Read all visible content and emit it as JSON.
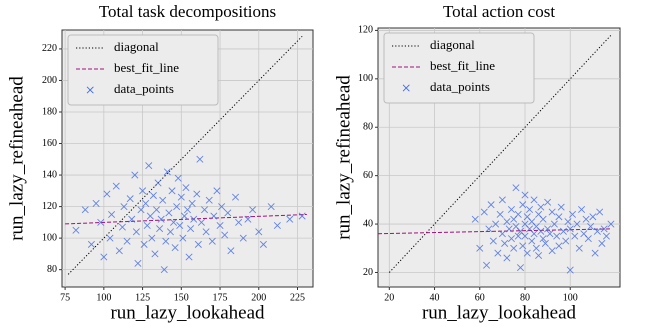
{
  "chart_data": [
    {
      "type": "scatter",
      "title": "Total task decompositions",
      "x_label": "run_lazy_lookahead",
      "y_label": "run_lazy_refineahead",
      "xlim": [
        73,
        235
      ],
      "ylim": [
        69,
        232
      ],
      "xticks": [
        75,
        100,
        125,
        150,
        175,
        200,
        225
      ],
      "yticks": [
        80,
        100,
        120,
        140,
        160,
        180,
        200,
        220
      ],
      "grid": true,
      "legend": "upper left",
      "series": [
        {
          "name": "diagonal",
          "kind": "line",
          "style": "dotted",
          "color": "#000000",
          "x": [
            77,
            228
          ],
          "values": [
            77,
            228
          ]
        },
        {
          "name": "best_fit_line",
          "kind": "line",
          "style": "dashed",
          "color": "#a0107a",
          "x": [
            75,
            231
          ],
          "values": [
            109,
            115
          ]
        },
        {
          "name": "data_points",
          "kind": "points",
          "marker": "x",
          "color": "#4169e1",
          "x": [
            82,
            88,
            92,
            95,
            98,
            100,
            102,
            104,
            105,
            108,
            110,
            112,
            113,
            115,
            117,
            118,
            120,
            121,
            122,
            124,
            125,
            126,
            127,
            128,
            129,
            130,
            131,
            132,
            133,
            134,
            135,
            136,
            137,
            138,
            139,
            140,
            141,
            142,
            143,
            144,
            145,
            146,
            147,
            148,
            149,
            150,
            151,
            152,
            153,
            154,
            155,
            156,
            157,
            158,
            160,
            161,
            162,
            163,
            165,
            166,
            168,
            170,
            171,
            173,
            175,
            176,
            178,
            180,
            182,
            185,
            187,
            190,
            193,
            196,
            200,
            203,
            208,
            212,
            220,
            228
          ],
          "values": [
            105,
            118,
            96,
            122,
            110,
            88,
            128,
            100,
            115,
            133,
            92,
            107,
            120,
            98,
            125,
            112,
            140,
            104,
            84,
            118,
            130,
            96,
            122,
            108,
            146,
            114,
            100,
            127,
            90,
            118,
            135,
            106,
            112,
            124,
            80,
            98,
            142,
            116,
            104,
            130,
            110,
            94,
            120,
            138,
            108,
            126,
            100,
            114,
            132,
            118,
            88,
            106,
            122,
            112,
            128,
            96,
            150,
            110,
            118,
            104,
            124,
            98,
            114,
            130,
            108,
            120,
            102,
            116,
            92,
            126,
            110,
            100,
            112,
            118,
            104,
            96,
            120,
            108,
            112,
            114
          ]
        }
      ]
    },
    {
      "type": "scatter",
      "title": "Total action cost",
      "x_label": "run_lazy_lookahead",
      "y_label": "run_lazy_refineahead",
      "xlim": [
        15,
        122
      ],
      "ylim": [
        14,
        121
      ],
      "xticks": [
        20,
        40,
        60,
        80,
        100
      ],
      "yticks": [
        20,
        40,
        60,
        80,
        100,
        120
      ],
      "grid": true,
      "legend": "upper left",
      "series": [
        {
          "name": "diagonal",
          "kind": "line",
          "style": "dotted",
          "color": "#000000",
          "x": [
            20,
            118
          ],
          "values": [
            20,
            118
          ]
        },
        {
          "name": "best_fit_line",
          "kind": "line",
          "style": "dashed",
          "color": "#a0107a",
          "x": [
            15,
            118
          ],
          "values": [
            36,
            38
          ]
        },
        {
          "name": "data_points",
          "kind": "points",
          "marker": "x",
          "color": "#4169e1",
          "x": [
            58,
            60,
            62,
            63,
            64,
            65,
            66,
            67,
            68,
            69,
            70,
            70,
            71,
            72,
            72,
            73,
            74,
            74,
            75,
            75,
            76,
            76,
            77,
            77,
            78,
            78,
            79,
            79,
            80,
            80,
            80,
            81,
            81,
            82,
            82,
            83,
            83,
            84,
            84,
            85,
            85,
            86,
            86,
            87,
            87,
            88,
            88,
            89,
            90,
            90,
            91,
            92,
            92,
            93,
            94,
            95,
            95,
            96,
            97,
            98,
            99,
            100,
            100,
            101,
            102,
            103,
            104,
            105,
            106,
            107,
            108,
            109,
            110,
            111,
            112,
            113,
            114,
            115,
            116,
            118
          ],
          "values": [
            42,
            30,
            45,
            23,
            38,
            48,
            33,
            40,
            28,
            44,
            36,
            50,
            32,
            41,
            26,
            38,
            46,
            34,
            42,
            30,
            39,
            55,
            35,
            44,
            22,
            37,
            48,
            31,
            40,
            52,
            35,
            43,
            28,
            38,
            46,
            33,
            41,
            36,
            50,
            30,
            39,
            44,
            27,
            37,
            47,
            34,
            42,
            32,
            49,
            38,
            36,
            45,
            29,
            40,
            35,
            43,
            31,
            47,
            37,
            33,
            41,
            38,
            21,
            44,
            35,
            40,
            30,
            46,
            36,
            42,
            34,
            39,
            43,
            28,
            37,
            45,
            32,
            38,
            35,
            40
          ]
        }
      ]
    }
  ]
}
